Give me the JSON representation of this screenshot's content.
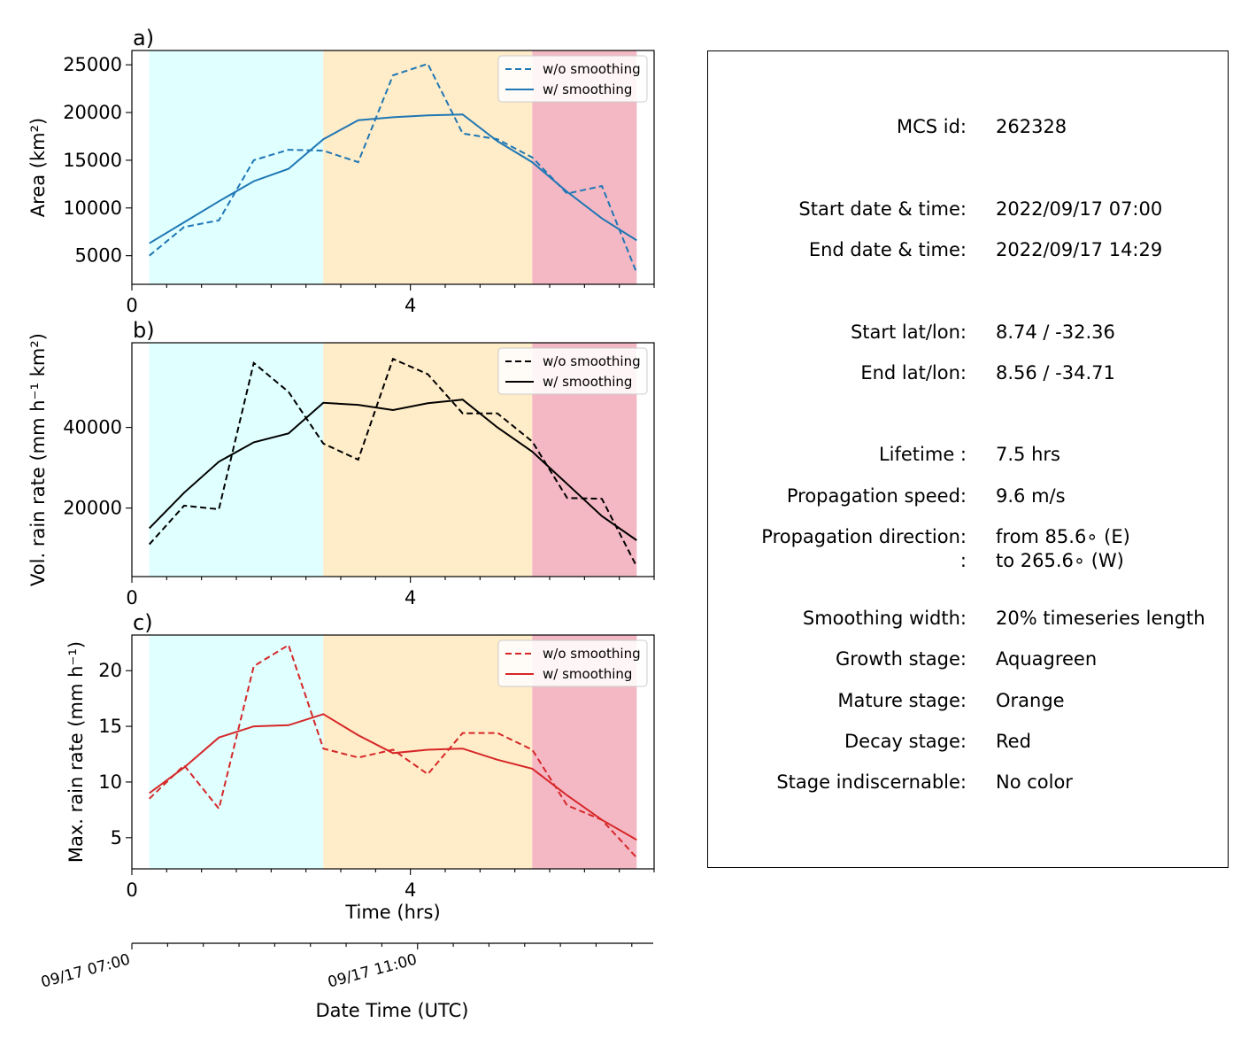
{
  "shared": {
    "x_tick_labels": [
      "0",
      "4"
    ],
    "xlabel": "Time (hrs)",
    "date_axis": {
      "tick_labels": [
        "09/17 07:00",
        "09/17 11:00"
      ],
      "label": "Date Time (UTC)"
    },
    "legend": [
      "w/o smoothing",
      "w/ smoothing"
    ],
    "stage_colors": {
      "growth": "#e0ffff",
      "mature": "#ffecc8",
      "decay": "#f4b8c4"
    }
  },
  "chart_data": [
    {
      "type": "line",
      "panel": "a)",
      "ylabel": "Area  (km²)",
      "color": "#1f77b4",
      "xlim": [
        0,
        7.5
      ],
      "ylim": [
        2000,
        26500
      ],
      "y_ticks": [
        5000,
        10000,
        15000,
        20000,
        25000
      ],
      "y_tick_labels": [
        "5000",
        "10000",
        "15000",
        "20000",
        "25000"
      ],
      "stages": {
        "growth": [
          0.25,
          2.75
        ],
        "mature": [
          2.75,
          5.75
        ],
        "decay": [
          5.75,
          7.25
        ]
      },
      "legend_position": "upper right",
      "x": [
        0.25,
        0.75,
        1.25,
        1.75,
        2.25,
        2.75,
        3.25,
        3.75,
        4.25,
        4.75,
        5.25,
        5.75,
        6.25,
        6.75,
        7.25
      ],
      "series": [
        {
          "name": "w/o smoothing",
          "style": "dashed",
          "values": [
            5000,
            8000,
            8700,
            15000,
            16100,
            16000,
            14800,
            23900,
            25100,
            17800,
            17200,
            15300,
            11500,
            12300,
            3200
          ]
        },
        {
          "name": "w/ smoothing",
          "style": "solid",
          "values": [
            6300,
            8500,
            10700,
            12800,
            14100,
            17200,
            19200,
            19500,
            19700,
            19800,
            17000,
            14800,
            11700,
            8900,
            6600
          ]
        }
      ]
    },
    {
      "type": "line",
      "panel": "b)",
      "ylabel": "Vol. rain rate (mm h⁻¹ km²)",
      "color": "#000000",
      "xlim": [
        0,
        7.5
      ],
      "ylim": [
        3000,
        61000
      ],
      "y_ticks": [
        20000,
        40000
      ],
      "y_tick_labels": [
        "20000",
        "40000"
      ],
      "stages": {
        "growth": [
          0.25,
          2.75
        ],
        "mature": [
          2.75,
          5.75
        ],
        "decay": [
          5.75,
          7.25
        ]
      },
      "legend_position": "upper right",
      "x": [
        0.25,
        0.75,
        1.25,
        1.75,
        2.25,
        2.75,
        3.25,
        3.75,
        4.25,
        4.75,
        5.25,
        5.75,
        6.25,
        6.75,
        7.25
      ],
      "series": [
        {
          "name": "w/o smoothing",
          "style": "dashed",
          "values": [
            11000,
            20600,
            19700,
            56000,
            48800,
            36000,
            32000,
            57000,
            53200,
            43500,
            43500,
            36500,
            22500,
            22300,
            5500
          ]
        },
        {
          "name": "w/ smoothing",
          "style": "solid",
          "values": [
            15000,
            23800,
            31500,
            36300,
            38500,
            46100,
            45600,
            44300,
            46000,
            46900,
            40000,
            34000,
            26000,
            18000,
            12000
          ]
        }
      ]
    },
    {
      "type": "line",
      "panel": "c)",
      "ylabel": "Max. rain rate  (mm h⁻¹)",
      "color": "#d62728",
      "xlim": [
        0,
        7.5
      ],
      "ylim": [
        2.2,
        23.2
      ],
      "y_ticks": [
        5,
        10,
        15,
        20
      ],
      "y_tick_labels": [
        "5",
        "10",
        "15",
        "20"
      ],
      "stages": {
        "growth": [
          0.25,
          2.75
        ],
        "mature": [
          2.75,
          5.75
        ],
        "decay": [
          5.75,
          7.25
        ]
      },
      "legend_position": "upper right",
      "x": [
        0.25,
        0.75,
        1.25,
        1.75,
        2.25,
        2.75,
        3.25,
        3.75,
        4.25,
        4.75,
        5.25,
        5.75,
        6.25,
        6.75,
        7.25
      ],
      "series": [
        {
          "name": "w/o smoothing",
          "style": "dashed",
          "values": [
            8.5,
            11.5,
            7.6,
            20.4,
            22.3,
            13.0,
            12.2,
            12.9,
            10.7,
            14.4,
            14.4,
            12.9,
            7.9,
            6.6,
            3.2
          ]
        },
        {
          "name": "w/ smoothing",
          "style": "solid",
          "values": [
            9.0,
            11.3,
            14.0,
            15.0,
            15.1,
            16.1,
            14.2,
            12.6,
            12.9,
            13.0,
            12.0,
            11.2,
            8.8,
            6.6,
            4.8
          ]
        }
      ]
    }
  ],
  "info": {
    "mcs_id": {
      "key": "MCS id:",
      "value": "262328"
    },
    "start_dt": {
      "key": "Start date & time:",
      "value": "2022/09/17 07:00"
    },
    "end_dt": {
      "key": "End date & time:",
      "value": "2022/09/17 14:29"
    },
    "start_latlon": {
      "key": "Start lat/lon:",
      "value": "8.74 / -32.36"
    },
    "end_latlon": {
      "key": "End lat/lon:",
      "value": "8.56 / -34.71"
    },
    "lifetime": {
      "key": "Lifetime :",
      "value": "7.5 hrs"
    },
    "speed": {
      "key": "Propagation speed:",
      "value": "9.6 m/s"
    },
    "direction": {
      "key": "Propagation direction:",
      "value": "from  85.6∘ (E)"
    },
    "direction2": {
      "key": ":",
      "value": "to   265.6∘ (W)"
    },
    "smoothing": {
      "key": "Smoothing width:",
      "value": "20% timeseries length"
    },
    "growth": {
      "key": "Growth stage:",
      "value": "Aquagreen"
    },
    "mature": {
      "key": "Mature stage:",
      "value": "Orange"
    },
    "decay": {
      "key": "Decay stage:",
      "value": "Red"
    },
    "indiscernable": {
      "key": "Stage indiscernable:",
      "value": "No color"
    }
  }
}
